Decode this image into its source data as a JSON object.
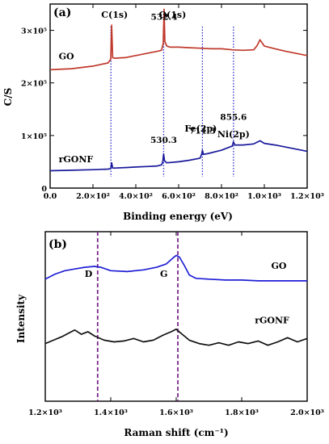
{
  "chart_data": [
    {
      "panel_label": "(a)",
      "type": "line",
      "xlabel": "Binding energy (eV)",
      "ylabel": "C/S",
      "xlim": [
        0,
        1200
      ],
      "ylim": [
        0,
        350000
      ],
      "x_tick_labels": [
        "0.0",
        "2.0×10²",
        "4.0×10²",
        "6.0×10²",
        "8.0×10²",
        "1.0×10³",
        "1.2×10³"
      ],
      "x_ticks": [
        0,
        200,
        400,
        600,
        800,
        1000,
        1200
      ],
      "y_tick_labels": [
        "0",
        "1×10⁵",
        "2×10⁵",
        "3×10⁵"
      ],
      "y_ticks": [
        0,
        100000,
        200000,
        300000
      ],
      "series": [
        {
          "name": "GO",
          "color": "#c0392b",
          "x": [
            0,
            100,
            200,
            270,
            283,
            287,
            292,
            300,
            350,
            400,
            450,
            500,
            520,
            528,
            532,
            536,
            545,
            560,
            600,
            650,
            700,
            750,
            800,
            850,
            900,
            950,
            965,
            980,
            1000,
            1050,
            1100,
            1150,
            1200
          ],
          "y": [
            225000,
            227000,
            232000,
            238000,
            245000,
            310000,
            248000,
            247000,
            248000,
            252000,
            256000,
            260000,
            262000,
            275000,
            340000,
            278000,
            270000,
            268000,
            268000,
            267000,
            266000,
            265000,
            265000,
            263000,
            262000,
            263000,
            270000,
            282000,
            270000,
            265000,
            260000,
            256000,
            252000
          ]
        },
        {
          "name": "rGONF",
          "color": "#1a1a9c",
          "x": [
            0,
            100,
            200,
            270,
            283,
            287,
            292,
            300,
            350,
            400,
            450,
            500,
            520,
            526,
            530,
            534,
            545,
            600,
            650,
            700,
            708,
            711,
            716,
            740,
            800,
            850,
            856,
            862,
            900,
            950,
            980,
            1000,
            1050,
            1100,
            1150,
            1200
          ],
          "y": [
            33000,
            34000,
            35000,
            36000,
            37000,
            48000,
            38000,
            38000,
            39000,
            40000,
            41000,
            42000,
            44000,
            50000,
            65000,
            52000,
            48000,
            50000,
            53000,
            57000,
            65000,
            72000,
            64000,
            66000,
            72000,
            80000,
            88000,
            82000,
            82000,
            84000,
            90000,
            85000,
            82000,
            78000,
            74000,
            70000
          ]
        }
      ],
      "reference_lines": [
        {
          "x": 284,
          "label": "C(1s)"
        },
        {
          "x": 530,
          "label": "O(1s)"
        },
        {
          "x": 711,
          "label": "Fe(2p)"
        },
        {
          "x": 856,
          "label": "Ni(2p)"
        }
      ],
      "annotations": [
        {
          "text": "532.4",
          "x": 532,
          "y": 320000
        },
        {
          "text": "530.3",
          "x": 530,
          "y": 86000
        },
        {
          "text": "711.3",
          "x": 711,
          "y": 104000
        },
        {
          "text": "855.6",
          "x": 856,
          "y": 130000
        }
      ],
      "series_labels": [
        {
          "text": "GO",
          "x": 40,
          "y": 245000
        },
        {
          "text": "rGONF",
          "x": 40,
          "y": 49000
        }
      ]
    },
    {
      "panel_label": "(b)",
      "type": "line",
      "xlabel": "Raman shift (cm⁻¹)",
      "ylabel": "Intensity",
      "xlim": [
        1200,
        2000
      ],
      "ylim": [
        0,
        1
      ],
      "x_tick_labels": [
        "1.2×10³",
        "1.4×10³",
        "1.6×10³",
        "1.8×10³",
        "2.0×10³"
      ],
      "x_ticks": [
        1200,
        1400,
        1600,
        1800,
        2000
      ],
      "series": [
        {
          "name": "GO",
          "color": "#1f1fd6",
          "x": [
            1200,
            1230,
            1260,
            1290,
            1320,
            1350,
            1370,
            1400,
            1450,
            1500,
            1540,
            1570,
            1590,
            1600,
            1610,
            1625,
            1640,
            1660,
            1700,
            1750,
            1800,
            1850,
            1900,
            1950,
            2000
          ],
          "y": [
            0.72,
            0.75,
            0.77,
            0.78,
            0.79,
            0.795,
            0.79,
            0.77,
            0.765,
            0.775,
            0.79,
            0.81,
            0.845,
            0.86,
            0.85,
            0.8,
            0.745,
            0.725,
            0.72,
            0.715,
            0.715,
            0.71,
            0.71,
            0.71,
            0.71
          ]
        },
        {
          "name": "rGONF",
          "color": "#111111",
          "x": [
            1200,
            1225,
            1250,
            1270,
            1290,
            1310,
            1330,
            1350,
            1380,
            1410,
            1440,
            1470,
            1500,
            1530,
            1560,
            1585,
            1600,
            1615,
            1640,
            1670,
            1700,
            1730,
            1760,
            1790,
            1820,
            1850,
            1880,
            1910,
            1940,
            1970,
            2000
          ],
          "y": [
            0.34,
            0.36,
            0.38,
            0.4,
            0.42,
            0.395,
            0.41,
            0.385,
            0.36,
            0.35,
            0.355,
            0.37,
            0.35,
            0.36,
            0.39,
            0.41,
            0.425,
            0.4,
            0.36,
            0.34,
            0.33,
            0.345,
            0.33,
            0.35,
            0.34,
            0.355,
            0.33,
            0.35,
            0.375,
            0.35,
            0.37
          ]
        }
      ],
      "reference_lines": [
        {
          "x": 1360,
          "label": "D"
        },
        {
          "x": 1605,
          "label": "G"
        }
      ],
      "series_labels": [
        {
          "text": "GO",
          "x": 1890,
          "y": 0.78
        },
        {
          "text": "rGONF",
          "x": 1840,
          "y": 0.46
        }
      ]
    }
  ]
}
